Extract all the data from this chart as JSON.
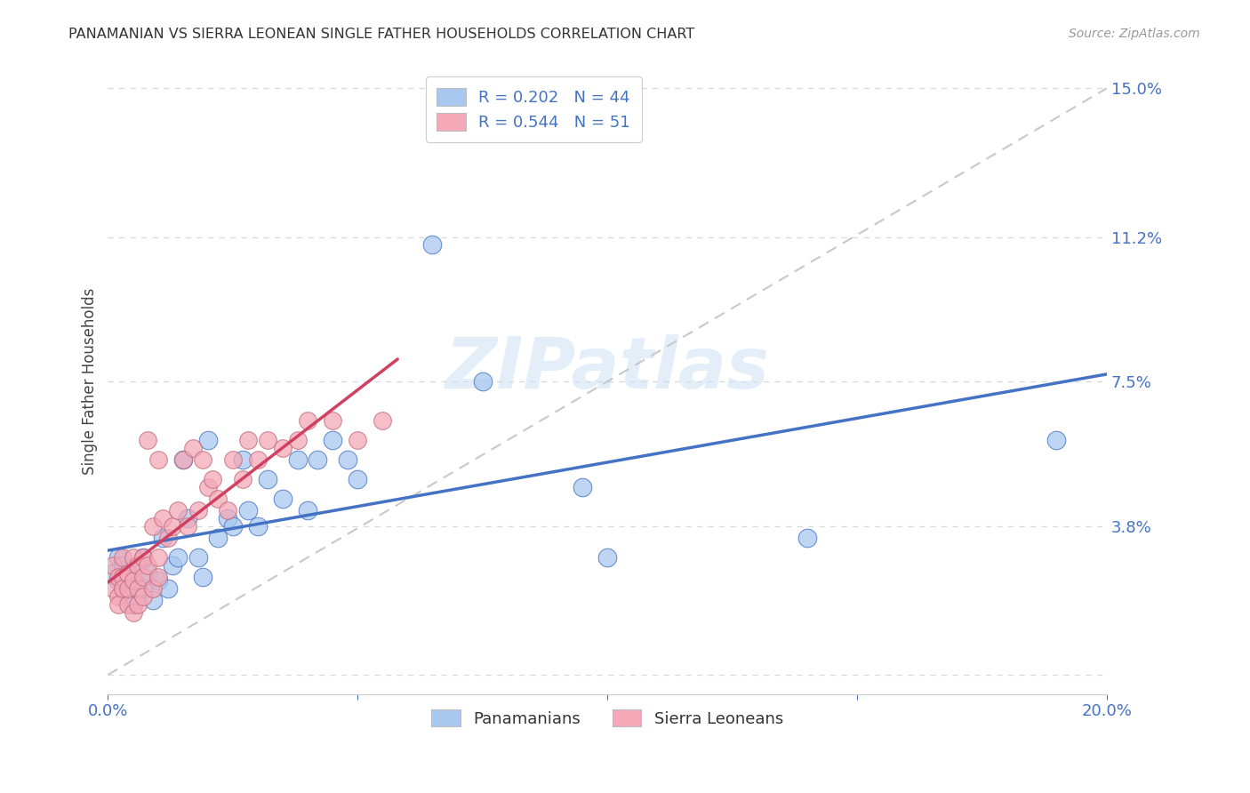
{
  "title": "PANAMANIAN VS SIERRA LEONEAN SINGLE FATHER HOUSEHOLDS CORRELATION CHART",
  "source": "Source: ZipAtlas.com",
  "ylabel": "Single Father Households",
  "xlim": [
    0.0,
    0.2
  ],
  "ylim": [
    -0.005,
    0.155
  ],
  "color_pan": "#a8c8f0",
  "color_sl": "#f4a8b8",
  "line_color_pan": "#4472c4",
  "line_color_sl": "#d04060",
  "line_color_dashed": "#c8c8c8",
  "watermark": "ZIPatlas",
  "background_color": "#ffffff",
  "pan_points": [
    [
      0.001,
      0.026
    ],
    [
      0.002,
      0.024
    ],
    [
      0.002,
      0.03
    ],
    [
      0.003,
      0.022
    ],
    [
      0.003,
      0.028
    ],
    [
      0.004,
      0.025
    ],
    [
      0.004,
      0.02
    ],
    [
      0.005,
      0.027
    ],
    [
      0.005,
      0.018
    ],
    [
      0.006,
      0.023
    ],
    [
      0.007,
      0.03
    ],
    [
      0.007,
      0.022
    ],
    [
      0.008,
      0.026
    ],
    [
      0.009,
      0.019
    ],
    [
      0.01,
      0.024
    ],
    [
      0.011,
      0.035
    ],
    [
      0.012,
      0.022
    ],
    [
      0.013,
      0.028
    ],
    [
      0.014,
      0.03
    ],
    [
      0.015,
      0.055
    ],
    [
      0.016,
      0.04
    ],
    [
      0.018,
      0.03
    ],
    [
      0.019,
      0.025
    ],
    [
      0.02,
      0.06
    ],
    [
      0.022,
      0.035
    ],
    [
      0.024,
      0.04
    ],
    [
      0.025,
      0.038
    ],
    [
      0.027,
      0.055
    ],
    [
      0.028,
      0.042
    ],
    [
      0.03,
      0.038
    ],
    [
      0.032,
      0.05
    ],
    [
      0.035,
      0.045
    ],
    [
      0.038,
      0.055
    ],
    [
      0.04,
      0.042
    ],
    [
      0.042,
      0.055
    ],
    [
      0.045,
      0.06
    ],
    [
      0.048,
      0.055
    ],
    [
      0.05,
      0.05
    ],
    [
      0.065,
      0.11
    ],
    [
      0.075,
      0.075
    ],
    [
      0.095,
      0.048
    ],
    [
      0.1,
      0.03
    ],
    [
      0.14,
      0.035
    ],
    [
      0.19,
      0.06
    ]
  ],
  "sl_points": [
    [
      0.001,
      0.022
    ],
    [
      0.001,
      0.028
    ],
    [
      0.002,
      0.02
    ],
    [
      0.002,
      0.025
    ],
    [
      0.002,
      0.018
    ],
    [
      0.003,
      0.025
    ],
    [
      0.003,
      0.022
    ],
    [
      0.003,
      0.03
    ],
    [
      0.004,
      0.018
    ],
    [
      0.004,
      0.026
    ],
    [
      0.004,
      0.022
    ],
    [
      0.005,
      0.03
    ],
    [
      0.005,
      0.024
    ],
    [
      0.005,
      0.016
    ],
    [
      0.006,
      0.028
    ],
    [
      0.006,
      0.022
    ],
    [
      0.006,
      0.018
    ],
    [
      0.007,
      0.025
    ],
    [
      0.007,
      0.02
    ],
    [
      0.007,
      0.03
    ],
    [
      0.008,
      0.06
    ],
    [
      0.008,
      0.028
    ],
    [
      0.009,
      0.022
    ],
    [
      0.009,
      0.038
    ],
    [
      0.01,
      0.025
    ],
    [
      0.01,
      0.055
    ],
    [
      0.01,
      0.03
    ],
    [
      0.011,
      0.04
    ],
    [
      0.012,
      0.035
    ],
    [
      0.013,
      0.038
    ],
    [
      0.014,
      0.042
    ],
    [
      0.015,
      0.055
    ],
    [
      0.016,
      0.038
    ],
    [
      0.017,
      0.058
    ],
    [
      0.018,
      0.042
    ],
    [
      0.019,
      0.055
    ],
    [
      0.02,
      0.048
    ],
    [
      0.021,
      0.05
    ],
    [
      0.022,
      0.045
    ],
    [
      0.024,
      0.042
    ],
    [
      0.025,
      0.055
    ],
    [
      0.027,
      0.05
    ],
    [
      0.028,
      0.06
    ],
    [
      0.03,
      0.055
    ],
    [
      0.032,
      0.06
    ],
    [
      0.035,
      0.058
    ],
    [
      0.038,
      0.06
    ],
    [
      0.04,
      0.065
    ],
    [
      0.045,
      0.065
    ],
    [
      0.05,
      0.06
    ],
    [
      0.055,
      0.065
    ]
  ],
  "pan_reg": [
    0.0,
    0.2,
    0.027,
    0.063
  ],
  "sl_reg": [
    0.0,
    0.058,
    0.02,
    0.068
  ],
  "dash_line": [
    0.0,
    0.2,
    0.0,
    0.15
  ]
}
